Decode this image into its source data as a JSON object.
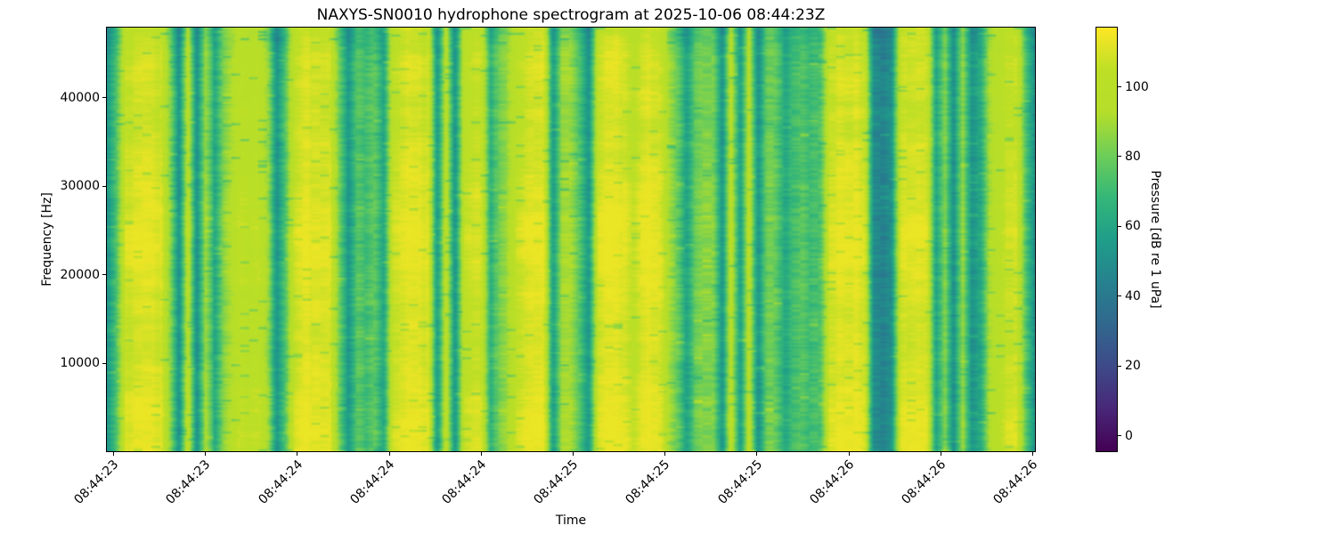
{
  "figure": {
    "background": "#ffffff",
    "text_color": "#000000"
  },
  "chart_data": {
    "type": "heatmap",
    "subtype": "spectrogram",
    "title": "NAXYS-SN0010 hydrophone spectrogram at 2025-10-06 08:44:23Z",
    "xlabel": "Time",
    "ylabel": "Frequency [Hz]",
    "x_tick_labels": [
      "08:44:23",
      "08:44:23",
      "08:44:24",
      "08:44:24",
      "08:44:24",
      "08:44:25",
      "08:44:25",
      "08:44:25",
      "08:44:26",
      "08:44:26",
      "08:44:26"
    ],
    "x_tick_rotation_deg": 45,
    "y_ticks_hz": [
      10000,
      20000,
      30000,
      40000
    ],
    "y_range_hz": [
      0,
      48000
    ],
    "grid": false,
    "legend": "none",
    "colormap": "viridis",
    "colormap_stops": [
      [
        0.0,
        "#440154"
      ],
      [
        0.1,
        "#482878"
      ],
      [
        0.2,
        "#3e4a89"
      ],
      [
        0.3,
        "#31688e"
      ],
      [
        0.4,
        "#26828e"
      ],
      [
        0.5,
        "#1f9e89"
      ],
      [
        0.6,
        "#35b779"
      ],
      [
        0.7,
        "#6ece58"
      ],
      [
        0.8,
        "#b5de2b"
      ],
      [
        0.9,
        "#bddf26"
      ],
      [
        1.0,
        "#fde725"
      ]
    ],
    "colorbar": {
      "label": "Pressure [dB re 1 uPa]",
      "ticks": [
        0,
        20,
        40,
        60,
        80,
        100
      ],
      "vmin": -4.6,
      "vmax": 117.2
    },
    "time_mean_db_profile": [
      52,
      75,
      105,
      110,
      111,
      110,
      108,
      85,
      52,
      100,
      50,
      90,
      62,
      85,
      95,
      103,
      100,
      102,
      88,
      54,
      78,
      105,
      110,
      111,
      110,
      109,
      80,
      54,
      76,
      72,
      78,
      62,
      106,
      110,
      111,
      110,
      109,
      54,
      100,
      51,
      104,
      107,
      106,
      63,
      84,
      90,
      106,
      110,
      111,
      110,
      56,
      90,
      88,
      75,
      52,
      105,
      110,
      111,
      110,
      102,
      110,
      111,
      110,
      92,
      78,
      58,
      80,
      82,
      82,
      52,
      100,
      56,
      99,
      52,
      80,
      80,
      62,
      70,
      76,
      70,
      74,
      106,
      111,
      110,
      111,
      108,
      50,
      46,
      50,
      106,
      110,
      111,
      108,
      60,
      85,
      52,
      88,
      54,
      62,
      92,
      97,
      106,
      108,
      78,
      54
    ],
    "freq_modulation": {
      "low_boost_db": 4.0,
      "low_center": 0.06,
      "low_sigma": 0.1,
      "mid_boost_db": 4.5,
      "mid_center": 0.49,
      "mid_sigma": 0.11,
      "top_dip_db": 7.0,
      "top_sigma": 0.05,
      "band_dip_db": 2.0,
      "band_center": 0.8,
      "band_sigma": 0.07
    },
    "texture": {
      "seed": 12345,
      "blotch_db": 6.0,
      "streak_db": 2.2,
      "dark_dash_db": 18.0,
      "light_dash_db": 9.0
    }
  }
}
